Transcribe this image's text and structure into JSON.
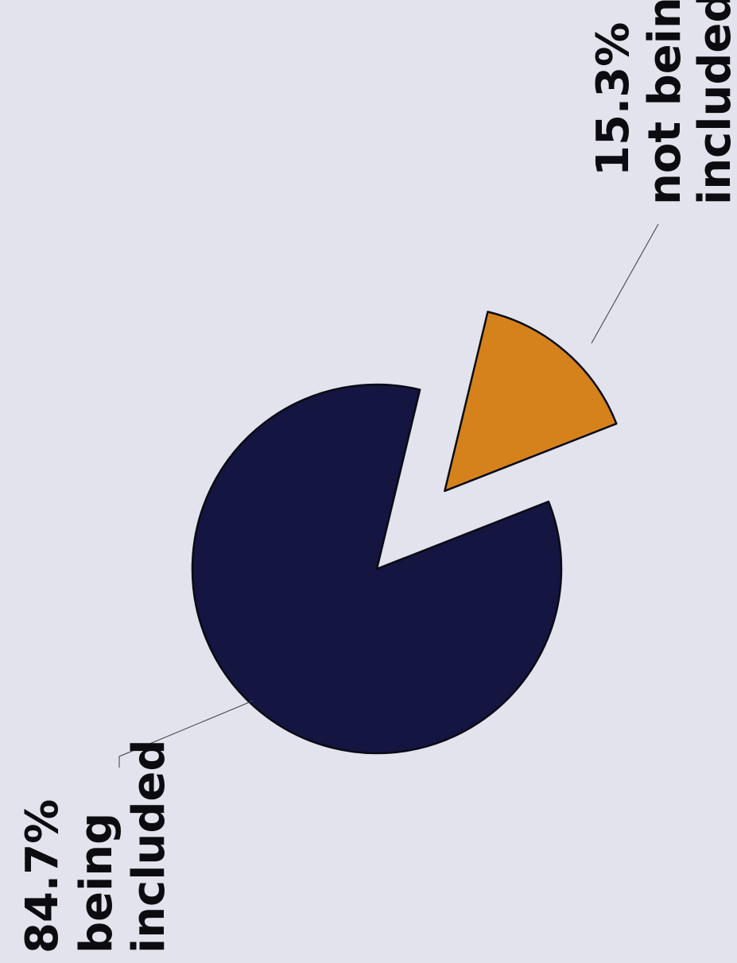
{
  "chart_data": {
    "type": "pie",
    "title": "",
    "slices": [
      {
        "label": "being included",
        "value_label": "84.7%",
        "value": 84.7,
        "color": "#141541",
        "exploded": false
      },
      {
        "label": "not being included",
        "value_label": "15.3%",
        "value": 15.3,
        "color": "#d5821c",
        "exploded": true
      }
    ],
    "legend": "none",
    "label_orientation": "rotated-90-ccw"
  }
}
